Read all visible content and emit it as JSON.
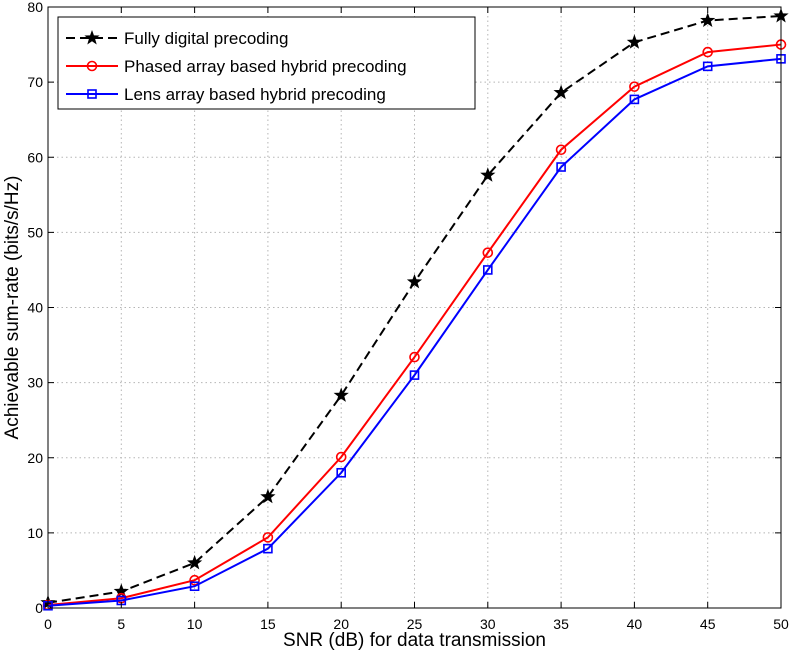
{
  "chart_data": {
    "type": "line",
    "title": "",
    "xlabel": "SNR (dB) for data transmission",
    "ylabel": "Achievable sum-rate (bits/s/Hz)",
    "xlim": [
      0,
      50
    ],
    "ylim": [
      0,
      80
    ],
    "xticks": [
      0,
      5,
      10,
      15,
      20,
      25,
      30,
      35,
      40,
      45,
      50
    ],
    "yticks": [
      0,
      10,
      20,
      30,
      40,
      50,
      60,
      70,
      80
    ],
    "grid": true,
    "legend_position": "top-left",
    "x": [
      0,
      5,
      10,
      15,
      20,
      25,
      30,
      35,
      40,
      45,
      50
    ],
    "series": [
      {
        "name": "Fully digital precoding",
        "color": "#000000",
        "line_style": "dashed",
        "marker": "star",
        "values": [
          0.7,
          2.2,
          6.0,
          14.8,
          28.3,
          43.4,
          57.6,
          68.6,
          75.3,
          78.2,
          78.8
        ]
      },
      {
        "name": "Phased array based hybrid precoding",
        "color": "#ff0000",
        "line_style": "solid",
        "marker": "circle",
        "values": [
          0.4,
          1.3,
          3.7,
          9.4,
          20.1,
          33.4,
          47.3,
          61.0,
          69.4,
          74.0,
          75.0
        ]
      },
      {
        "name": "Lens array based hybrid precoding",
        "color": "#0000ff",
        "line_style": "solid",
        "marker": "square",
        "values": [
          0.3,
          1.0,
          2.9,
          7.9,
          18.0,
          31.0,
          45.0,
          58.7,
          67.7,
          72.1,
          73.1
        ]
      }
    ]
  }
}
